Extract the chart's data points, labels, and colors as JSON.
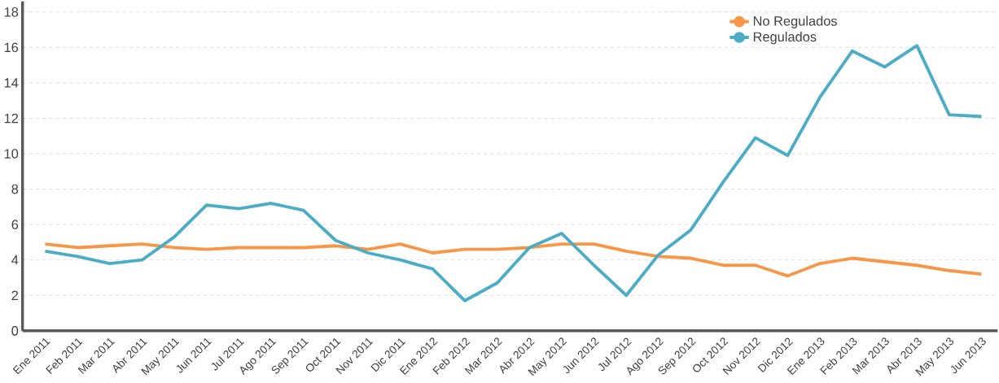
{
  "chart_data": {
    "type": "line",
    "categories": [
      "Ene 2011",
      "Feb 2011",
      "Mar 2011",
      "Abr 2011",
      "May 2011",
      "Jun 2011",
      "Jul 2011",
      "Ago 2011",
      "Sep 2011",
      "Oct 2011",
      "Nov 2011",
      "Dic 2011",
      "Ene 2012",
      "Feb 2012",
      "Mar 2012",
      "Abr 2012",
      "May 2012",
      "Jun 2012",
      "Jul 2012",
      "Ago 2012",
      "Sep 2012",
      "Oct 2012",
      "Nov 2012",
      "Dic 2012",
      "Ene 2013",
      "Feb 2013",
      "Mar 2013",
      "Abr 2013",
      "May 2013",
      "Jun 2013"
    ],
    "series": [
      {
        "name": "No Regulados",
        "color": "#f79646",
        "values": [
          4.9,
          4.7,
          4.8,
          4.9,
          4.7,
          4.6,
          4.7,
          4.7,
          4.7,
          4.8,
          4.6,
          4.9,
          4.4,
          4.6,
          4.6,
          4.7,
          4.9,
          4.9,
          4.5,
          4.2,
          4.1,
          3.7,
          3.7,
          3.1,
          3.8,
          4.1,
          3.9,
          3.7,
          3.4,
          3.2
        ]
      },
      {
        "name": "Regulados",
        "color": "#4bacc6",
        "values": [
          4.5,
          4.2,
          3.8,
          4.0,
          5.3,
          7.1,
          6.9,
          7.2,
          6.8,
          5.1,
          4.4,
          4.0,
          3.5,
          1.7,
          2.7,
          4.7,
          5.5,
          3.7,
          2.0,
          4.3,
          5.7,
          8.4,
          10.9,
          9.9,
          13.2,
          15.8,
          14.9,
          16.1,
          12.2,
          12.1
        ]
      }
    ],
    "ylim": [
      0,
      18.6
    ],
    "yticks": [
      0,
      2,
      4,
      6,
      8,
      10,
      12,
      14,
      16,
      18
    ],
    "grid": "y",
    "legend": "top right",
    "marker": "none",
    "line_style": "solid"
  }
}
